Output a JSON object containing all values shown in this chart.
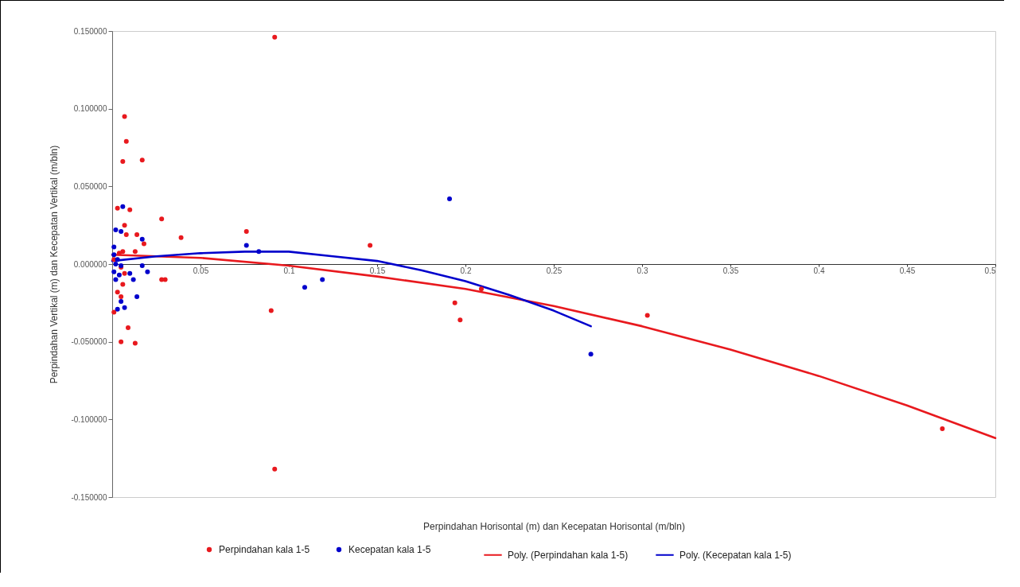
{
  "chart_data": {
    "type": "scatter",
    "xlabel": "Perpindahan Horisontal (m)  dan Kecepatan Horisontal (m/bln)",
    "ylabel": "Perpindahan Vertikal (m) dan Kecepatan Vertikal (m/bln)",
    "xlim": [
      0,
      0.5
    ],
    "xticks": [
      0.05,
      0.1,
      0.15,
      0.2,
      0.25,
      0.3,
      0.35,
      0.4,
      0.45,
      0.5
    ],
    "ylim": [
      -0.15,
      0.15
    ],
    "yticks": [
      {
        "value": -0.15,
        "label": "-0.150000"
      },
      {
        "value": -0.1,
        "label": "-0.100000"
      },
      {
        "value": -0.05,
        "label": "-0.050000"
      },
      {
        "value": 0,
        "label": "0.000000"
      },
      {
        "value": 0.05,
        "label": "0.050000"
      },
      {
        "value": 0.1,
        "label": "0.100000"
      },
      {
        "value": 0.15,
        "label": "0.150000"
      }
    ],
    "grid": false,
    "legend": "bottom",
    "series": [
      {
        "name": "Perpindahan kala 1-5",
        "color": "#e8191e",
        "marker": "circle",
        "x": [
          0.092,
          0.007,
          0.008,
          0.006,
          0.017,
          0.003,
          0.01,
          0.028,
          0.039,
          0.076,
          0.146,
          0.007,
          0.008,
          0.014,
          0.018,
          0.03,
          0.028,
          0.09,
          0.194,
          0.197,
          0.209,
          0.303,
          0.47,
          0.092,
          0.005,
          0.013,
          0.009,
          0.001,
          0.006,
          0.013,
          0.003,
          0.005,
          0.006,
          0.007,
          0.001,
          0.004,
          0.005
        ],
        "values": [
          0.146,
          0.095,
          0.079,
          0.066,
          0.067,
          0.036,
          0.035,
          0.029,
          0.017,
          0.021,
          0.012,
          0.025,
          0.019,
          0.019,
          0.013,
          -0.01,
          -0.01,
          -0.03,
          -0.025,
          -0.036,
          -0.016,
          -0.033,
          -0.106,
          -0.132,
          -0.05,
          -0.051,
          -0.041,
          -0.031,
          0.008,
          0.008,
          -0.018,
          -0.021,
          -0.013,
          -0.006,
          0.003,
          0.007,
          -0.002
        ]
      },
      {
        "name": "Kecepatan kala 1-5",
        "color": "#0000cc",
        "marker": "circle",
        "x": [
          0.191,
          0.076,
          0.083,
          0.109,
          0.119,
          0.271,
          0.006,
          0.002,
          0.005,
          0.017,
          0.02,
          0.014,
          0.012,
          0.01,
          0.017,
          0.003,
          0.005,
          0.007,
          0.001,
          0.001,
          0.002,
          0.001,
          0.002,
          0.003,
          0.004,
          0.005
        ],
        "values": [
          0.042,
          0.012,
          0.008,
          -0.015,
          -0.01,
          -0.058,
          0.037,
          0.022,
          0.021,
          0.016,
          -0.005,
          -0.021,
          -0.01,
          -0.006,
          -0.001,
          -0.029,
          -0.024,
          -0.028,
          0.011,
          0.006,
          0.0,
          -0.005,
          -0.01,
          0.003,
          -0.007,
          -0.001
        ]
      },
      {
        "name": "Poly. (Perpindahan kala 1-5)",
        "color": "#e8191e",
        "type": "line",
        "x": [
          0,
          0.05,
          0.1,
          0.15,
          0.2,
          0.25,
          0.3,
          0.35,
          0.4,
          0.45,
          0.5
        ],
        "values": [
          0.006,
          0.004,
          -0.001,
          -0.008,
          -0.016,
          -0.027,
          -0.04,
          -0.055,
          -0.072,
          -0.091,
          -0.112
        ]
      },
      {
        "name": "Poly. (Kecepatan kala 1-5)",
        "color": "#0000cc",
        "type": "line",
        "x": [
          0,
          0.025,
          0.05,
          0.075,
          0.1,
          0.125,
          0.15,
          0.175,
          0.2,
          0.225,
          0.25,
          0.271
        ],
        "values": [
          0.002,
          0.005,
          0.007,
          0.008,
          0.008,
          0.005,
          0.002,
          -0.004,
          -0.011,
          -0.02,
          -0.03,
          -0.04
        ]
      }
    ]
  }
}
